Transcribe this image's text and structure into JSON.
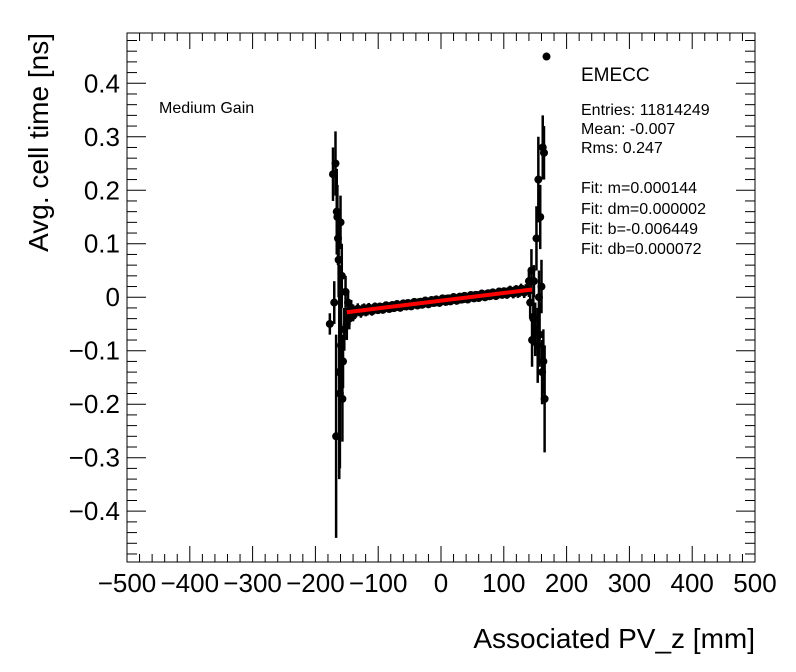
{
  "chart_data": {
    "type": "scatter",
    "title": "",
    "xlabel": "Associated PV_z [mm]",
    "ylabel": "Avg. cell time [ns]",
    "xlim": [
      -500,
      500
    ],
    "ylim": [
      -0.495,
      0.494
    ],
    "grid": false,
    "x_ticks": [
      -500,
      -400,
      -300,
      -200,
      -100,
      0,
      100,
      200,
      300,
      400,
      500
    ],
    "x_tick_labels": [
      "−500",
      "−400",
      "−300",
      "−200",
      "−100",
      "0",
      "100",
      "200",
      "300",
      "400",
      "500"
    ],
    "y_ticks": [
      0.4,
      0.3,
      0.2,
      0.1,
      0,
      -0.1,
      -0.2,
      -0.3,
      -0.4
    ],
    "y_tick_labels": [
      "0.4",
      "0.3",
      "0.2",
      "0.1",
      "0",
      "−0.1",
      "−0.2",
      "−0.3",
      "−0.4"
    ],
    "annotation": "Medium Gain",
    "stats": {
      "name": "EMECC",
      "lines": [
        "Entries: 11814249",
        "Mean: -0.007",
        "Rms: 0.247",
        "Fit: m=0.000144",
        "Fit: dm=0.000002",
        "Fit: b=-0.006449",
        "Fit: db=0.000072"
      ]
    },
    "fit": {
      "m": 0.000144,
      "b": -0.006449,
      "x_range": [
        -150,
        145
      ],
      "color": "#ff0000"
    },
    "marker_color": "#000000",
    "outliers": [
      {
        "x": -177,
        "y": -0.05,
        "e": 0.02
      },
      {
        "x": -172,
        "y": 0.23,
        "e": 0.05
      },
      {
        "x": -170,
        "y": -0.01,
        "e": 0.04
      },
      {
        "x": -168,
        "y": 0.25,
        "e": 0.06
      },
      {
        "x": -167,
        "y": -0.26,
        "e": 0.19
      },
      {
        "x": -166,
        "y": 0.16,
        "e": 0.08
      },
      {
        "x": -165,
        "y": 0.15,
        "e": 0.06
      },
      {
        "x": -164,
        "y": 0.11,
        "e": 0.05
      },
      {
        "x": -163,
        "y": 0.07,
        "e": 0.07
      },
      {
        "x": -162,
        "y": -0.14,
        "e": 0.2
      },
      {
        "x": -161,
        "y": -0.18,
        "e": 0.14
      },
      {
        "x": -160,
        "y": 0.14,
        "e": 0.05
      },
      {
        "x": -159,
        "y": -0.09,
        "e": 0.1
      },
      {
        "x": -158,
        "y": 0.04,
        "e": 0.06
      },
      {
        "x": -157,
        "y": -0.19,
        "e": 0.08
      },
      {
        "x": -156,
        "y": -0.12,
        "e": 0.05
      },
      {
        "x": -154,
        "y": -0.06,
        "e": 0.04
      },
      {
        "x": -152,
        "y": 0.01,
        "e": 0.03
      },
      {
        "x": -150,
        "y": -0.05,
        "e": 0.03
      },
      {
        "x": -148,
        "y": -0.01,
        "e": 0.02
      },
      {
        "x": -146,
        "y": -0.04,
        "e": 0.02
      },
      {
        "x": -143,
        "y": -0.02,
        "e": 0.015
      },
      {
        "x": -140,
        "y": -0.035,
        "e": 0.01
      },
      {
        "x": 140,
        "y": 0.03,
        "e": 0.02
      },
      {
        "x": 142,
        "y": -0.01,
        "e": 0.03
      },
      {
        "x": 144,
        "y": 0.05,
        "e": 0.04
      },
      {
        "x": 145,
        "y": -0.08,
        "e": 0.05
      },
      {
        "x": 147,
        "y": -0.04,
        "e": 0.05
      },
      {
        "x": 148,
        "y": 0.03,
        "e": 0.03
      },
      {
        "x": 150,
        "y": -0.06,
        "e": 0.05
      },
      {
        "x": 152,
        "y": 0.11,
        "e": 0.06
      },
      {
        "x": 154,
        "y": -0.09,
        "e": 0.07
      },
      {
        "x": 155,
        "y": 0.22,
        "e": 0.08
      },
      {
        "x": 156,
        "y": 0.0,
        "e": 0.05
      },
      {
        "x": 157,
        "y": -0.07,
        "e": 0.06
      },
      {
        "x": 158,
        "y": 0.15,
        "e": 0.06
      },
      {
        "x": 160,
        "y": 0.02,
        "e": 0.05
      },
      {
        "x": 161,
        "y": -0.14,
        "e": 0.06
      },
      {
        "x": 162,
        "y": 0.28,
        "e": 0.06
      },
      {
        "x": 163,
        "y": -0.12,
        "e": 0.06
      },
      {
        "x": 164,
        "y": 0.27,
        "e": 0.05
      },
      {
        "x": 165,
        "y": -0.19,
        "e": 0.1
      },
      {
        "x": 168,
        "y": 0.45,
        "e": 0.0
      }
    ]
  }
}
